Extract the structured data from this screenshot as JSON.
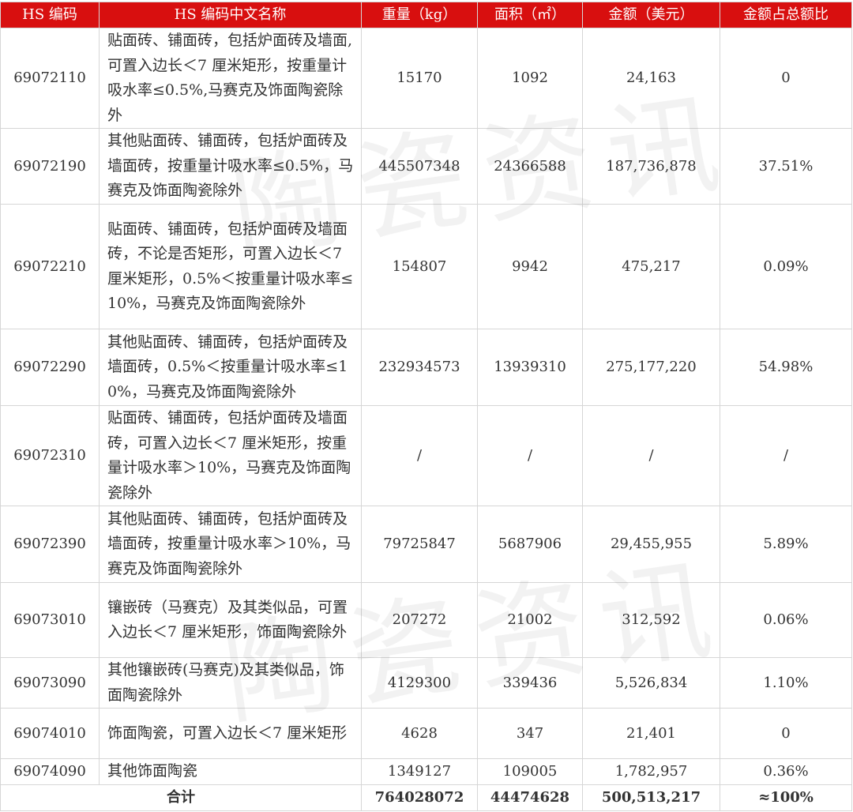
{
  "watermark": "陶瓷资讯",
  "table": {
    "header": [
      "HS 编码",
      "HS 编码中文名称",
      "重量（kg）",
      "面积（㎡）",
      "金额（美元）",
      "金额占总额比"
    ],
    "rows": [
      [
        "69072110",
        "贴面砖、铺面砖，包括炉面砖及墙面,可置入边长＜7 厘米矩形，按重量计吸水率≤0.5%,马赛克及饰面陶瓷除外",
        "15170",
        "1092",
        "24,163",
        "0"
      ],
      [
        "69072190",
        "其他贴面砖、铺面砖，包括炉面砖及墙面砖，按重量计吸水率≤0.5%，马赛克及饰面陶瓷除外",
        "445507348",
        "24366588",
        "187,736,878",
        "37.51%"
      ],
      [
        "69072210",
        "贴面砖、铺面砖，包括炉面砖及墙面砖，不论是否矩形，可置入边长＜7 厘米矩形，0.5%＜按重量计吸水率≤10%，马赛克及饰面陶瓷除外",
        "154807",
        "9942",
        "475,217",
        "0.09%"
      ],
      [
        "69072290",
        "其他贴面砖、铺面砖，包括炉面砖及墙面砖，0.5%＜按重量计吸水率≤10%，马赛克及饰面陶瓷除外",
        "232934573",
        "13939310",
        "275,177,220",
        "54.98%"
      ],
      [
        "69072310",
        "贴面砖、铺面砖，包括炉面砖及墙面砖，可置入边长＜7 厘米矩形，按重量计吸水率＞10%，马赛克及饰面陶瓷除外",
        "/",
        "/",
        "/",
        "/"
      ],
      [
        "69072390",
        "其他贴面砖、铺面砖，包括炉面砖及墙面砖，按重量计吸水率＞10%，马赛克及饰面陶瓷除外",
        "79725847",
        "5687906",
        "29,455,955",
        "5.89%"
      ],
      [
        "69073010",
        "镶嵌砖（马赛克）及其类似品，可置入边长＜7 厘米矩形，饰面陶瓷除外",
        "207272",
        "21002",
        "312,592",
        "0.06%"
      ],
      [
        "69073090",
        "其他镶嵌砖(马赛克)及其类似品，饰面陶瓷除外",
        "4129300",
        "339436",
        "5,526,834",
        "1.10%"
      ],
      [
        "69074010",
        "饰面陶瓷，可置入边长＜7 厘米矩形",
        "4628",
        "347",
        "21,401",
        "0"
      ],
      [
        "69074090",
        "其他饰面陶瓷",
        "1349127",
        "109005",
        "1,782,957",
        "0.36%"
      ]
    ],
    "total": {
      "label": "合计",
      "values": [
        "764028072",
        "44474628",
        "500,513,217",
        "≈100%"
      ]
    }
  }
}
